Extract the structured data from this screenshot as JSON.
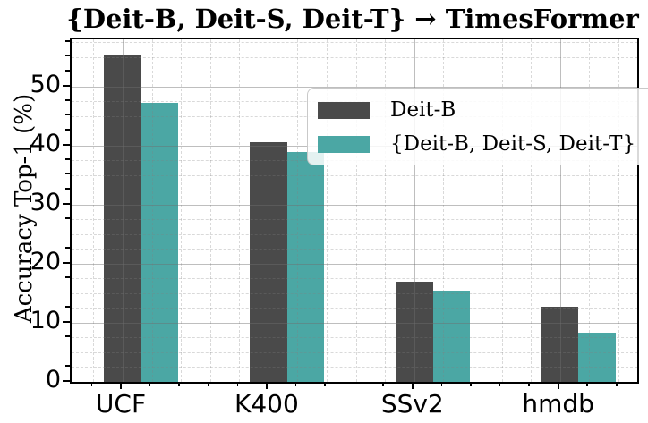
{
  "chart_data": {
    "type": "bar",
    "title": "{Deit-B, Deit-S, Deit-T} → TimesFormer",
    "xlabel": "",
    "ylabel": "Accuracy Top-1 (%)",
    "categories": [
      "UCF",
      "K400",
      "SSv2",
      "hmdb"
    ],
    "series": [
      {
        "name": "Deit-B",
        "color": "#4a4a4a",
        "values": [
          55.4,
          40.6,
          16.9,
          12.7
        ]
      },
      {
        "name": "{Deit-B, Deit-S, Deit-T}",
        "color": "#4ba7a4",
        "values": [
          47.3,
          38.9,
          15.4,
          8.4
        ]
      }
    ],
    "ylim": [
      0,
      58
    ],
    "yticks": [
      0,
      10,
      20,
      30,
      40,
      50
    ],
    "minor_y_step": 2.5,
    "minor_x_step_category_units": 0.2,
    "grid": "major solid + minor dashed, semi-transparent, drawn over bars",
    "legend_position": "upper right inside axes",
    "bar_width_category_units": 0.255,
    "series_offsets_category_units": [
      0,
      0.255
    ]
  }
}
